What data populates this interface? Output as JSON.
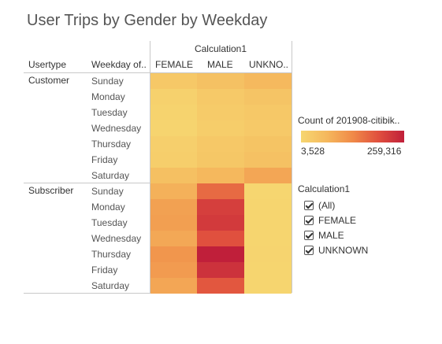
{
  "title": "User Trips by Gender by Weekday",
  "headers": {
    "usertype": "Usertype",
    "weekday": "Weekday of..",
    "column_group": "Calculation1",
    "columns": [
      "FEMALE",
      "MALE",
      "UNKNO.."
    ]
  },
  "legend": {
    "title": "Count of 201908-citibik..",
    "min_label": "3,528",
    "max_label": "259,316",
    "min": 3528,
    "max": 259316,
    "color_low": "#f6d670",
    "color_high": "#c01f3a"
  },
  "filter": {
    "title": "Calculation1",
    "items": [
      "(All)",
      "FEMALE",
      "MALE",
      "UNKNOWN"
    ]
  },
  "chart_data": {
    "type": "heatmap",
    "title": "User Trips by Gender by Weekday",
    "columns": [
      "FEMALE",
      "MALE",
      "UNKNOWN"
    ],
    "groups": [
      {
        "name": "Customer",
        "rows": [
          {
            "weekday": "Sunday",
            "values": [
              22000,
              30000,
              40000
            ]
          },
          {
            "weekday": "Monday",
            "values": [
              10000,
              20000,
              26000
            ]
          },
          {
            "weekday": "Tuesday",
            "values": [
              8000,
              17000,
              22000
            ]
          },
          {
            "weekday": "Wednesday",
            "values": [
              6000,
              15000,
              20000
            ]
          },
          {
            "weekday": "Thursday",
            "values": [
              12000,
              21000,
              27000
            ]
          },
          {
            "weekday": "Friday",
            "values": [
              14000,
              23000,
              30000
            ]
          },
          {
            "weekday": "Saturday",
            "values": [
              32000,
              42000,
              62000
            ]
          }
        ]
      },
      {
        "name": "Subscriber",
        "rows": [
          {
            "weekday": "Sunday",
            "values": [
              50000,
              135000,
              3528
            ]
          },
          {
            "weekday": "Monday",
            "values": [
              68000,
              200000,
              5000
            ]
          },
          {
            "weekday": "Tuesday",
            "values": [
              70000,
              210000,
              5000
            ]
          },
          {
            "weekday": "Wednesday",
            "values": [
              60000,
              170000,
              5000
            ]
          },
          {
            "weekday": "Thursday",
            "values": [
              80000,
              259316,
              6000
            ]
          },
          {
            "weekday": "Friday",
            "values": [
              74000,
              225000,
              5000
            ]
          },
          {
            "weekday": "Saturday",
            "values": [
              62000,
              160000,
              5000
            ]
          }
        ]
      }
    ]
  }
}
